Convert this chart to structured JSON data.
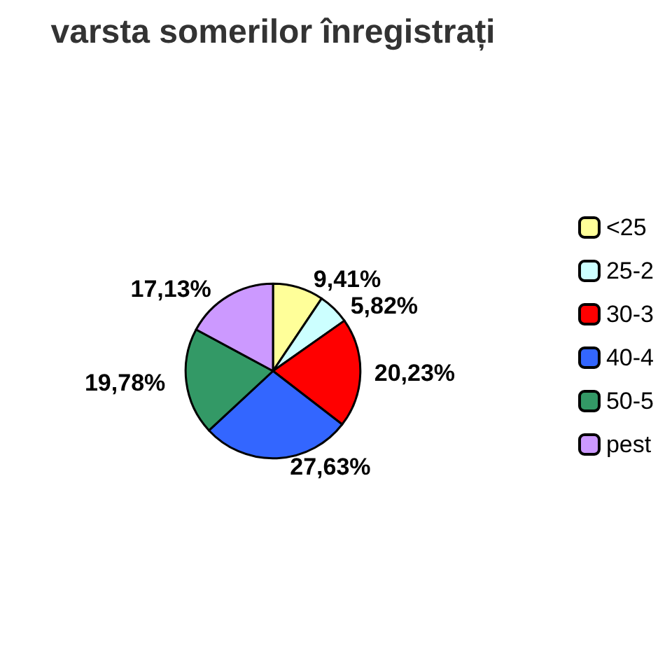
{
  "chart_data": {
    "type": "pie",
    "title": "varsta somerilor înregistrați",
    "categories": [
      "<25",
      "25-2",
      "30-3",
      "40-4",
      "50-5",
      "pest"
    ],
    "values": [
      9.41,
      5.82,
      20.23,
      27.63,
      19.78,
      17.13
    ],
    "value_labels": [
      "9,41%",
      "5,82%",
      "20,23%",
      "27,63%",
      "19,78%",
      "17,13%"
    ],
    "colors": [
      "#ffff99",
      "#ccffff",
      "#ff0000",
      "#3366ff",
      "#339966",
      "#cc99ff"
    ],
    "legend": "right"
  }
}
